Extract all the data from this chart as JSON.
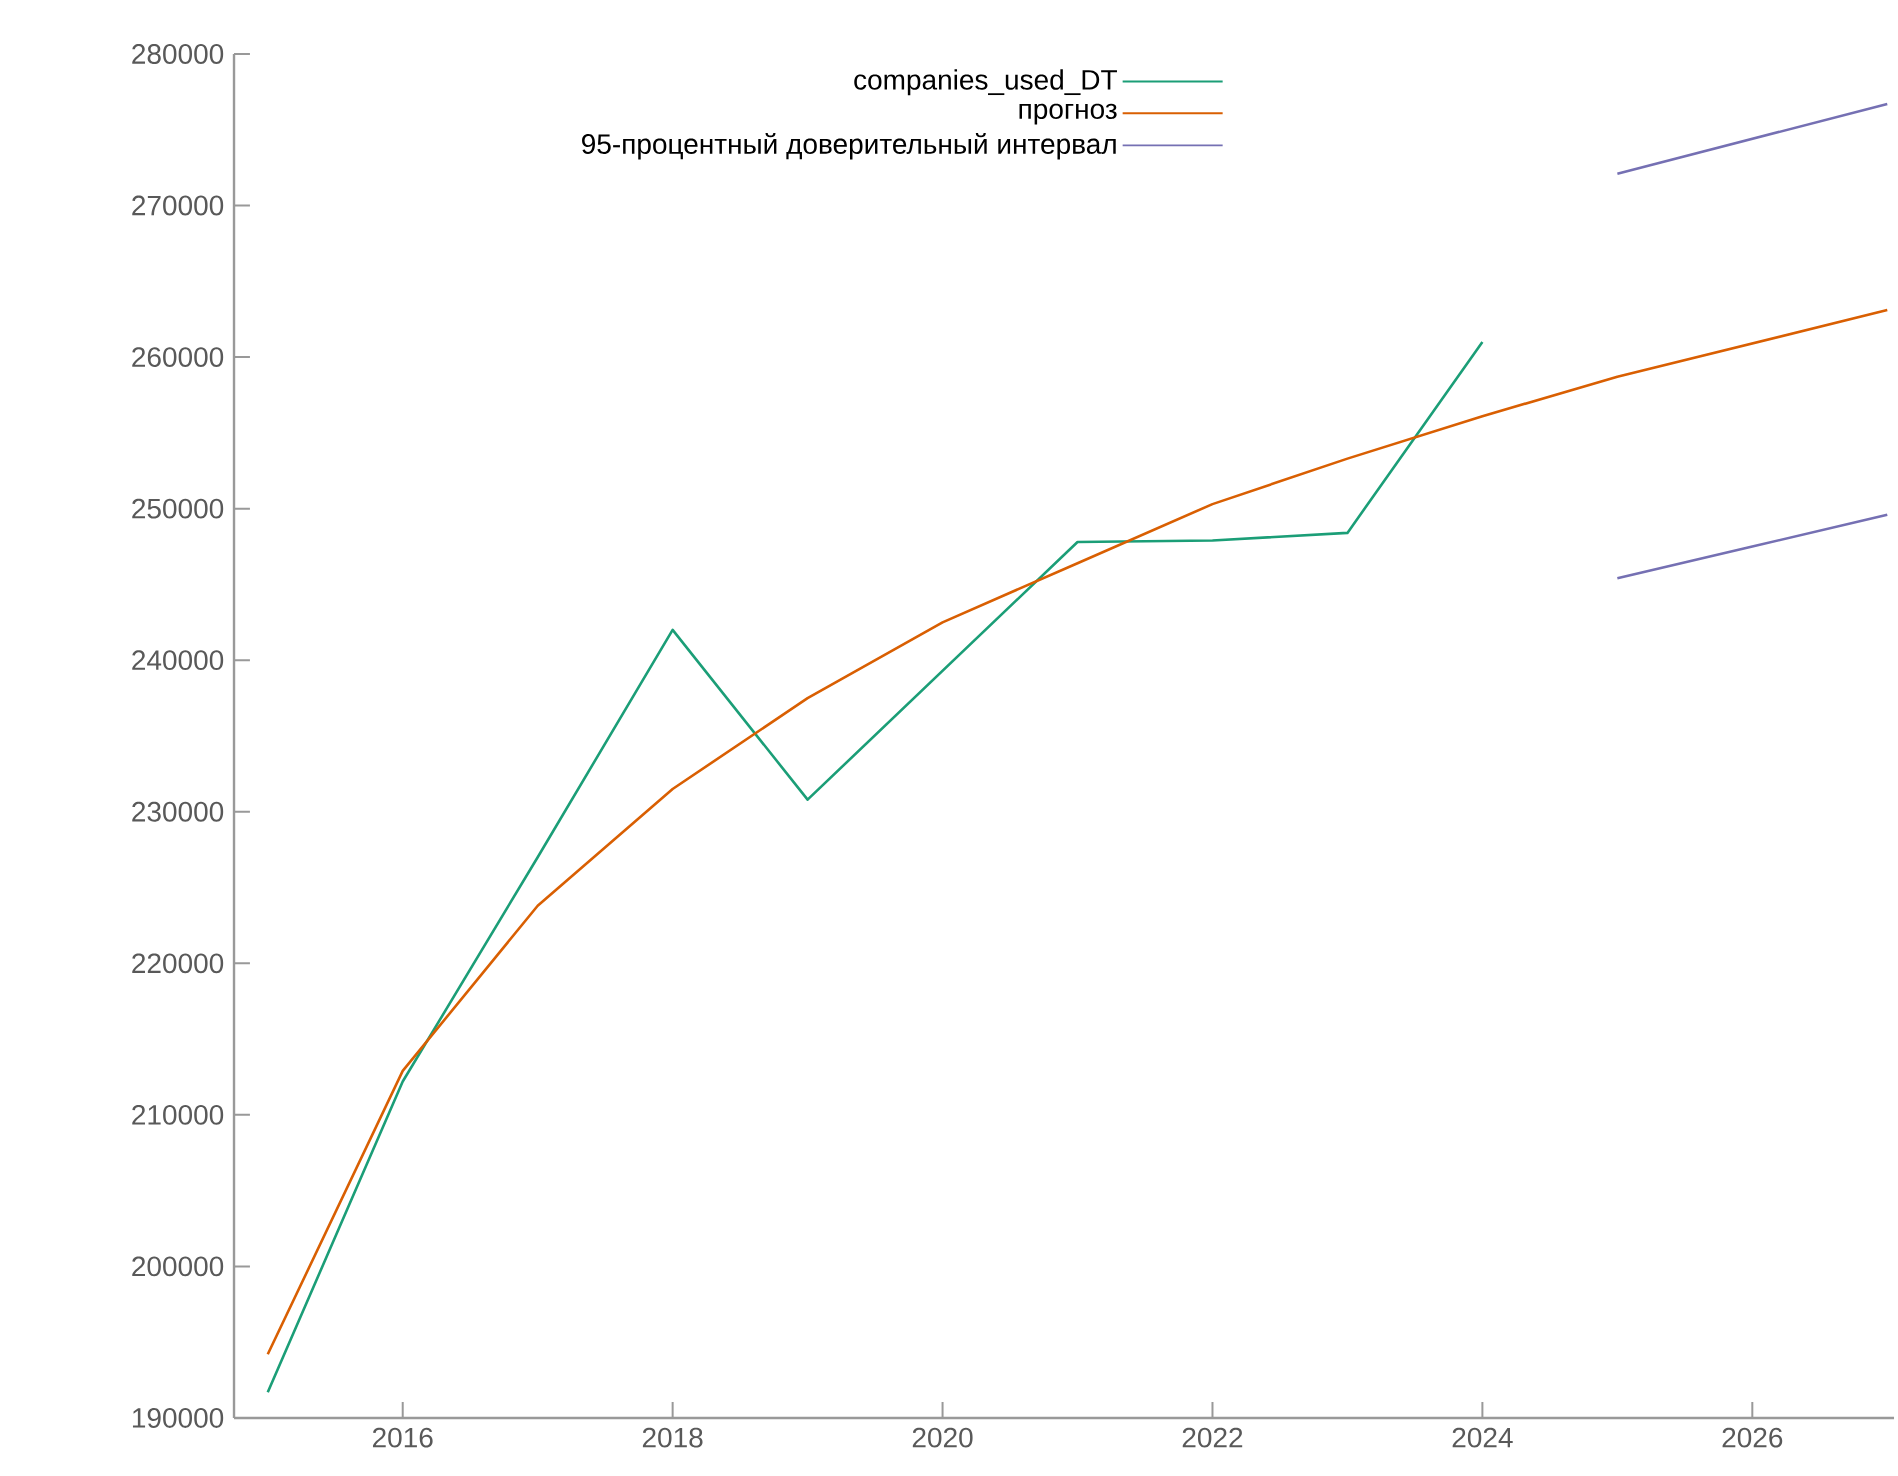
{
  "chart_data": {
    "type": "line",
    "series": [
      {
        "name": "companies_used_DT",
        "color": "#1b9e77",
        "x": [
          2015,
          2016,
          2017,
          2018,
          2019,
          2020,
          2021,
          2022,
          2023,
          2024
        ],
        "values": [
          191700,
          212200,
          227000,
          242000,
          230800,
          239300,
          247800,
          247900,
          248400,
          261000
        ]
      },
      {
        "name": "прогноз",
        "color": "#d95f02",
        "x": [
          2015,
          2016,
          2017,
          2018,
          2019,
          2020,
          2021,
          2022,
          2023,
          2024,
          2025,
          2026,
          2027
        ],
        "values": [
          194200,
          212900,
          223800,
          231500,
          237500,
          242500,
          246400,
          250300,
          253300,
          256100,
          258700,
          260900,
          263100
        ]
      },
      {
        "name": "95-процентный доверительный интервал",
        "color": "#7570b3",
        "x": [
          2025,
          2026,
          2027
        ],
        "values": [
          272100,
          274400,
          276700
        ]
      },
      {
        "color": "#7570b3",
        "x": [
          2025,
          2026,
          2027
        ],
        "values": [
          245400,
          247500,
          249600
        ]
      }
    ],
    "xlim": [
      2014.75,
      2027.05
    ],
    "ylim": [
      190000,
      280000
    ],
    "xticks": [
      2016,
      2018,
      2020,
      2022,
      2024,
      2026
    ],
    "yticks": [
      190000,
      200000,
      210000,
      220000,
      230000,
      240000,
      250000,
      260000,
      270000,
      280000
    ],
    "grid": false,
    "legend": "top",
    "marker": "none",
    "line_style": "solid"
  }
}
